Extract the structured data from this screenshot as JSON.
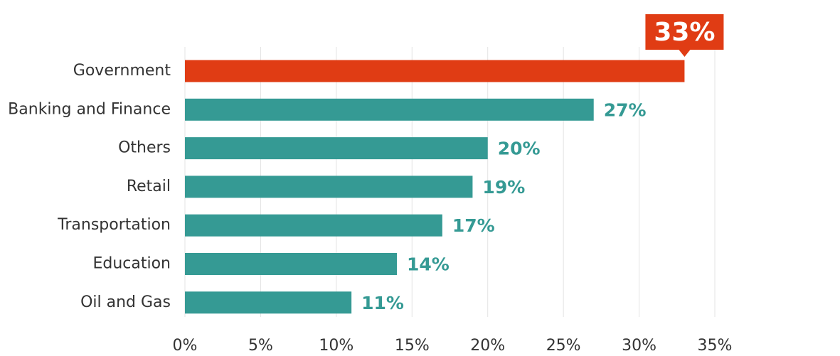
{
  "chart_data": {
    "type": "bar",
    "orientation": "horizontal",
    "categories": [
      "Government",
      "Banking and Finance",
      "Others",
      "Retail",
      "Transportation",
      "Education",
      "Oil and Gas"
    ],
    "values": [
      33,
      27,
      20,
      19,
      17,
      14,
      11
    ],
    "value_labels": [
      "33%",
      "27%",
      "20%",
      "19%",
      "17%",
      "14%",
      "11%"
    ],
    "colors": [
      "#e03c14",
      "#359a94",
      "#359a94",
      "#359a94",
      "#359a94",
      "#359a94",
      "#359a94"
    ],
    "xlim": [
      0,
      35
    ],
    "xticks": [
      {
        "value": 0,
        "label": "0%"
      },
      {
        "value": 5,
        "label": "5%"
      },
      {
        "value": 10,
        "label": "10%"
      },
      {
        "value": 15,
        "label": "15%"
      },
      {
        "value": 20,
        "label": "20%"
      },
      {
        "value": 25,
        "label": "25%"
      },
      {
        "value": 30,
        "label": "30%"
      },
      {
        "value": 35,
        "label": "35%"
      }
    ],
    "grid": true
  }
}
